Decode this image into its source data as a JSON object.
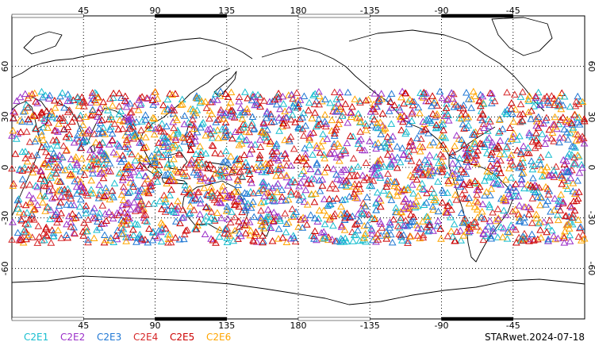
{
  "map": {
    "projection": "equirectangular",
    "center_longitude": 180,
    "lon_range": [
      0,
      360
    ],
    "lat_range": [
      -90,
      90
    ],
    "grid": true,
    "lon_ticks": [
      "45",
      "90",
      "135",
      "180",
      "-135",
      "-90",
      "-45"
    ],
    "lat_ticks": [
      "60",
      "30",
      "0",
      "-30",
      "-60"
    ],
    "timestamp": "STARwet.2024-07-18"
  },
  "legend": {
    "entries": [
      {
        "label": "C2E1",
        "color": "#17becf"
      },
      {
        "label": "C2E2",
        "color": "#9b30c9"
      },
      {
        "label": "C2E3",
        "color": "#1f77d4"
      },
      {
        "label": "C2E4",
        "color": "#d62728"
      },
      {
        "label": "C2E5",
        "color": "#cc0000"
      },
      {
        "label": "C2E6",
        "color": "#ffa500"
      }
    ]
  },
  "chart_data": {
    "type": "scatter",
    "marker": "open-triangle",
    "observation_lat_range": [
      -45,
      45
    ],
    "series": [
      {
        "name": "C2E1",
        "color": "#17becf"
      },
      {
        "name": "C2E2",
        "color": "#9b30c9"
      },
      {
        "name": "C2E3",
        "color": "#1f77d4"
      },
      {
        "name": "C2E4",
        "color": "#d62728"
      },
      {
        "name": "C2E5",
        "color": "#cc0000"
      },
      {
        "name": "C2E6",
        "color": "#ffa500"
      }
    ]
  }
}
